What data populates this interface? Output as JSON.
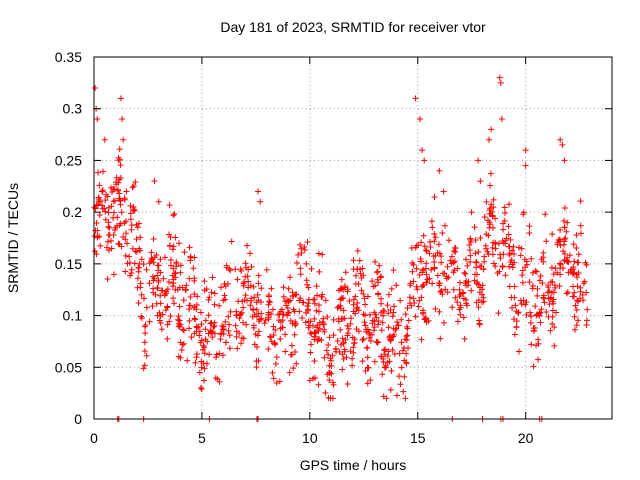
{
  "chart_data": {
    "type": "scatter",
    "title": "Day 181 of 2023, SRMTID for receiver vtor",
    "xlabel": "GPS time / hours",
    "ylabel": "SRMTID / TECUs",
    "xlim": [
      0,
      24
    ],
    "ylim": [
      0,
      0.35
    ],
    "grid": true,
    "marker": "+",
    "color": "#ff0000",
    "x_ticks": [
      0,
      5,
      10,
      15,
      20
    ],
    "x_tick_labels": [
      "0",
      "5",
      "10",
      "15",
      "20"
    ],
    "y_ticks": [
      0,
      0.05,
      0.1,
      0.15,
      0.2,
      0.25,
      0.3,
      0.35
    ],
    "y_tick_labels": [
      "0",
      "0.05",
      "0.1",
      "0.15",
      "0.2",
      "0.25",
      "0.3",
      "0.35"
    ],
    "series": [
      {
        "name": "SRMTID",
        "trend": [
          [
            0.0,
            0.17
          ],
          [
            0.5,
            0.2
          ],
          [
            1.0,
            0.18
          ],
          [
            1.5,
            0.2
          ],
          [
            2.0,
            0.15
          ],
          [
            2.5,
            0.13
          ],
          [
            3.0,
            0.12
          ],
          [
            3.5,
            0.12
          ],
          [
            4.0,
            0.12
          ],
          [
            4.5,
            0.11
          ],
          [
            5.0,
            0.1
          ],
          [
            5.5,
            0.09
          ],
          [
            6.0,
            0.1
          ],
          [
            6.5,
            0.09
          ],
          [
            7.0,
            0.1
          ],
          [
            7.5,
            0.12
          ],
          [
            8.0,
            0.11
          ],
          [
            8.5,
            0.1
          ],
          [
            9.0,
            0.1
          ],
          [
            9.5,
            0.11
          ],
          [
            10.0,
            0.1
          ],
          [
            10.5,
            0.08
          ],
          [
            11.0,
            0.07
          ],
          [
            11.5,
            0.09
          ],
          [
            12.0,
            0.1
          ],
          [
            12.5,
            0.09
          ],
          [
            13.0,
            0.08
          ],
          [
            13.5,
            0.08
          ],
          [
            14.0,
            0.09
          ],
          [
            14.5,
            0.1
          ],
          [
            15.0,
            0.13
          ],
          [
            15.5,
            0.14
          ],
          [
            16.0,
            0.14
          ],
          [
            16.5,
            0.14
          ],
          [
            17.0,
            0.14
          ],
          [
            17.5,
            0.15
          ],
          [
            18.0,
            0.16
          ],
          [
            18.5,
            0.17
          ],
          [
            19.0,
            0.16
          ],
          [
            19.5,
            0.15
          ],
          [
            20.0,
            0.14
          ],
          [
            20.5,
            0.12
          ],
          [
            21.0,
            0.12
          ],
          [
            21.5,
            0.14
          ],
          [
            22.0,
            0.15
          ],
          [
            22.5,
            0.13
          ],
          [
            22.9,
            0.12
          ]
        ],
        "spread": 0.045,
        "samples": 1300,
        "spikes": [
          [
            0.05,
            0.32
          ],
          [
            0.1,
            0.3
          ],
          [
            0.15,
            0.29
          ],
          [
            1.25,
            0.31
          ],
          [
            1.3,
            0.29
          ],
          [
            1.35,
            0.27
          ],
          [
            0.5,
            0.27
          ],
          [
            14.9,
            0.31
          ],
          [
            15.2,
            0.26
          ],
          [
            15.1,
            0.29
          ],
          [
            15.3,
            0.25
          ],
          [
            18.8,
            0.33
          ],
          [
            18.85,
            0.325
          ],
          [
            18.9,
            0.29
          ],
          [
            18.3,
            0.27
          ],
          [
            18.4,
            0.28
          ],
          [
            20.0,
            0.26
          ],
          [
            20.0,
            0.245
          ],
          [
            21.6,
            0.27
          ],
          [
            21.7,
            0.265
          ],
          [
            21.8,
            0.25
          ],
          [
            16.0,
            0.24
          ],
          [
            16.2,
            0.22
          ],
          [
            17.8,
            0.25
          ],
          [
            17.9,
            0.23
          ],
          [
            2.8,
            0.23
          ],
          [
            3.0,
            0.21
          ],
          [
            1.5,
            0.22
          ],
          [
            7.6,
            0.22
          ],
          [
            7.7,
            0.21
          ]
        ]
      },
      {
        "name": "zero-level markers",
        "points": [
          [
            1.1,
            0
          ],
          [
            1.15,
            0
          ],
          [
            2.3,
            0
          ],
          [
            5.35,
            0
          ],
          [
            7.55,
            0
          ],
          [
            7.6,
            0
          ],
          [
            16.6,
            0
          ],
          [
            18.0,
            0
          ],
          [
            18.85,
            0
          ],
          [
            18.95,
            0
          ],
          [
            20.65,
            0
          ],
          [
            20.75,
            0
          ]
        ]
      }
    ]
  }
}
